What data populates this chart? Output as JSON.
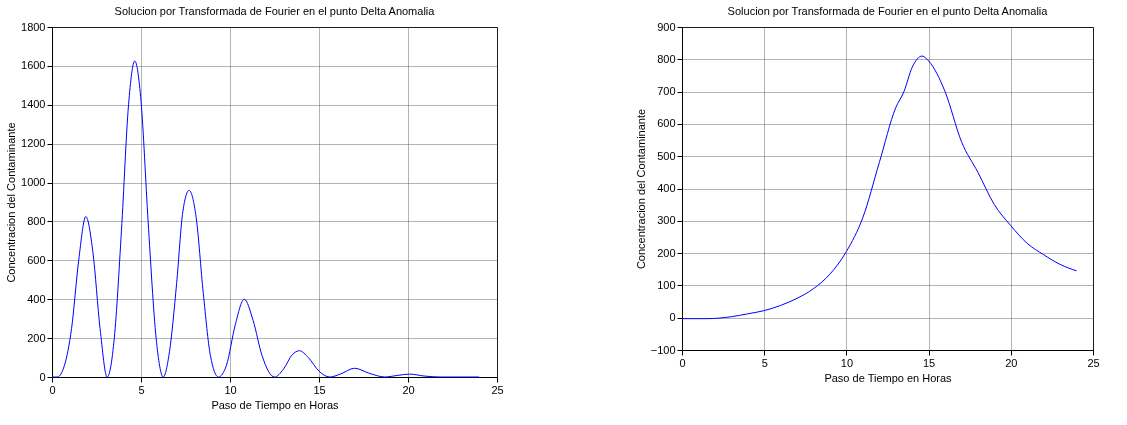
{
  "chart_data": [
    {
      "type": "line",
      "title": "Solucion por Transformada de Fourier en el punto Delta Anomalia",
      "xlabel": "Paso de Tiempo en Horas",
      "ylabel": "Concentracion del Contaminante",
      "xlim": [
        0,
        25
      ],
      "ylim": [
        0,
        1800
      ],
      "xticks": [
        0,
        5,
        10,
        15,
        20,
        25
      ],
      "yticks": [
        0,
        200,
        400,
        600,
        800,
        1000,
        1200,
        1400,
        1600,
        1800
      ],
      "grid": true,
      "x": [
        0,
        0.3,
        0.7,
        1.1,
        1.5,
        1.9,
        2.3,
        2.7,
        3.1,
        3.5,
        3.9,
        4.3,
        4.65,
        5.0,
        5.4,
        5.85,
        6.25,
        6.6,
        7.0,
        7.35,
        7.7,
        8.1,
        8.5,
        8.9,
        9.35,
        9.8,
        10.3,
        10.8,
        11.3,
        11.8,
        12.5,
        13.0,
        13.5,
        13.9,
        14.4,
        15.0,
        15.6,
        16.2,
        17.0,
        17.8,
        18.7,
        19.4,
        20.1,
        20.9,
        21.8,
        24
      ],
      "series": [
        {
          "color": "#0000ff",
          "values": [
            0,
            0,
            60,
            250,
            600,
            825,
            640,
            250,
            0,
            200,
            750,
            1400,
            1625,
            1420,
            800,
            200,
            0,
            130,
            480,
            850,
            960,
            820,
            430,
            110,
            0,
            60,
            270,
            400,
            290,
            110,
            0,
            40,
            115,
            135,
            100,
            30,
            0,
            15,
            45,
            20,
            0,
            8,
            15,
            5,
            0,
            0
          ]
        }
      ]
    },
    {
      "type": "line",
      "title": "Solucion por Transformada de Fourier en el punto Delta Anomalia",
      "xlabel": "Paso de Tiempo en Horas",
      "ylabel": "Concentracion del Contaminante",
      "xlim": [
        0,
        25
      ],
      "ylim": [
        -100,
        900
      ],
      "xticks": [
        0,
        5,
        10,
        15,
        20,
        25
      ],
      "yticks": [
        -100,
        0,
        100,
        200,
        300,
        400,
        500,
        600,
        700,
        800,
        900
      ],
      "grid": true,
      "x": [
        0,
        1.5,
        3,
        4,
        5,
        6,
        7,
        8,
        9,
        10,
        11,
        12,
        13,
        13.5,
        14,
        14.6,
        15,
        16,
        17,
        18,
        19,
        20,
        21,
        22,
        23,
        24
      ],
      "series": [
        {
          "color": "#0000ff",
          "values": [
            -3,
            -3,
            3,
            12,
            22,
            38,
            60,
            90,
            135,
            205,
            310,
            480,
            650,
            700,
            775,
            810,
            795,
            700,
            545,
            450,
            350,
            285,
            230,
            195,
            165,
            145
          ]
        }
      ]
    }
  ]
}
